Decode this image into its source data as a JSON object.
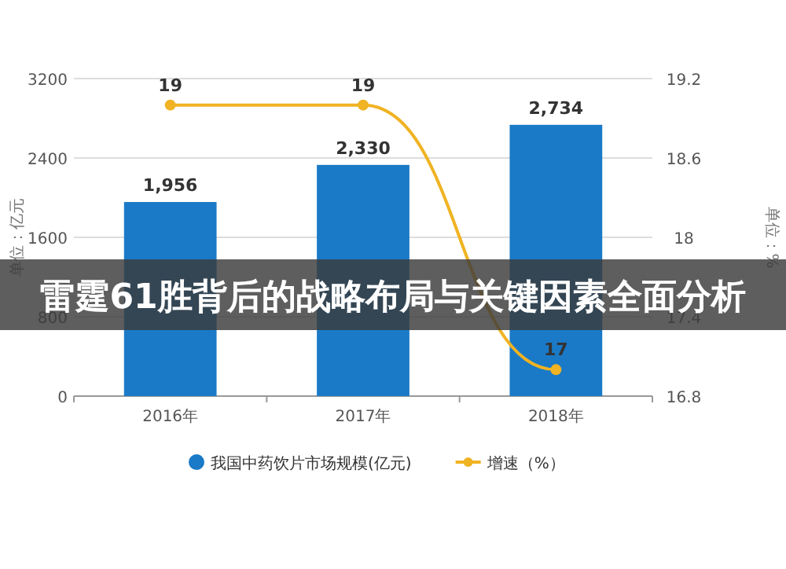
{
  "chart_data": {
    "type": "bar",
    "title": "雷霆61胜背后的战略布局与关键因素全面分析",
    "ylabel": "单位：亿元",
    "y2label": "单位：%",
    "categories": [
      "2016年",
      "2017年",
      "2018年"
    ],
    "series": [
      {
        "name": "我国中药饮片市场规模(亿元)",
        "color": "#1a7ac7",
        "values": [
          1956,
          2330,
          2734
        ],
        "value_labels": [
          "1,956",
          "2,330",
          "2,734"
        ]
      },
      {
        "name": "增速（%）",
        "type": "line",
        "axis": "y2",
        "color": "#f0b323",
        "values": [
          19,
          19,
          17
        ],
        "value_labels": [
          "19",
          "19",
          "17"
        ],
        "marker": "circle"
      }
    ],
    "ylim": [
      0,
      3200
    ],
    "yticks": [
      0,
      800,
      1600,
      2400,
      3200
    ],
    "y2lim": [
      16.8,
      19.2
    ],
    "y2ticks": [
      16.8,
      17.4,
      18,
      18.6,
      19.2
    ],
    "grid": "y",
    "legend": "bottom"
  }
}
